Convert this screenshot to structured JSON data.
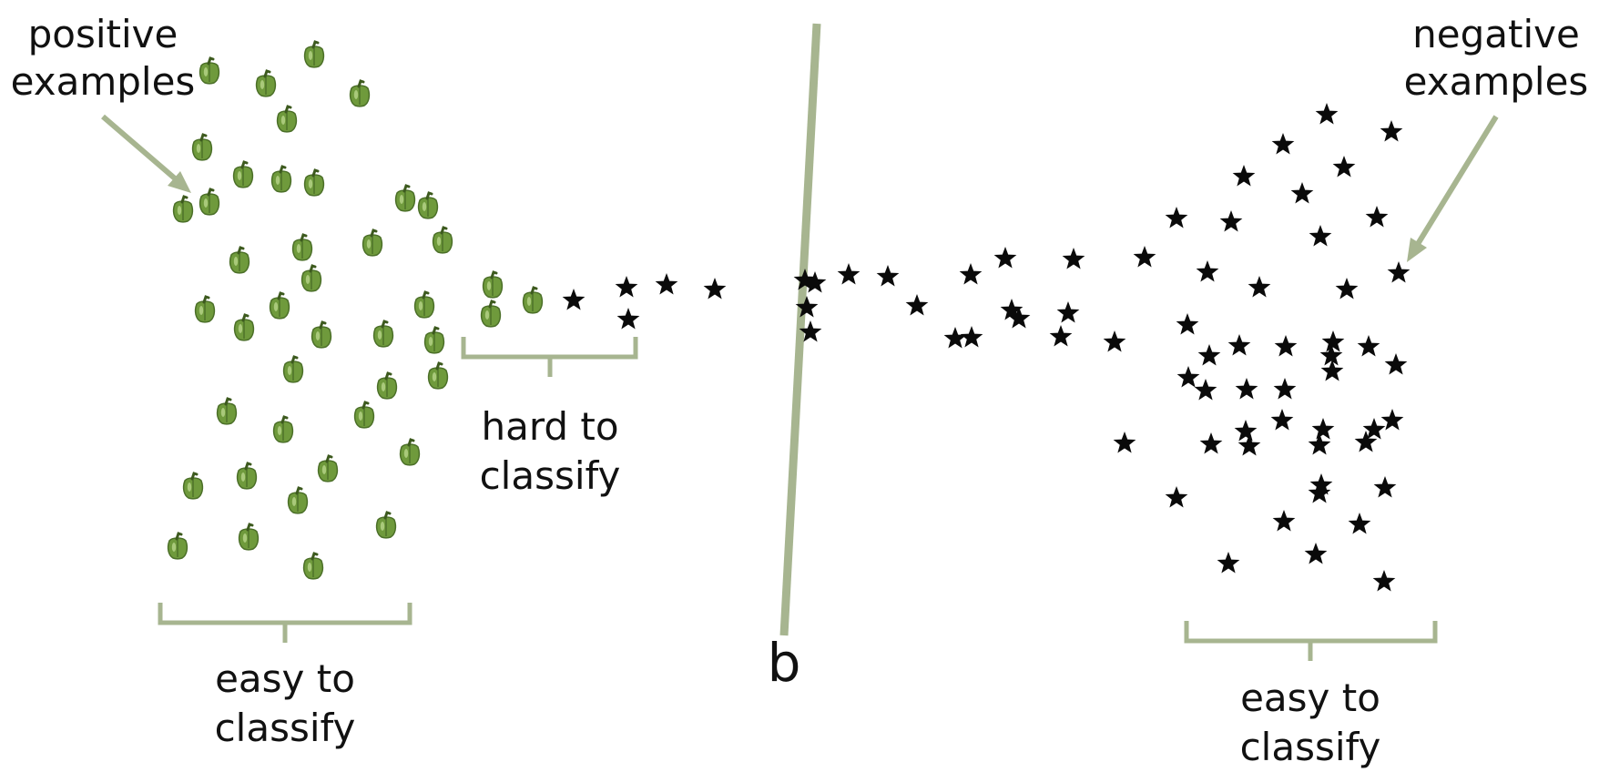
{
  "labels": {
    "positive_line1": "positive",
    "positive_line2": "examples",
    "negative_line1": "negative",
    "negative_line2": "examples",
    "hard_line1": "hard to",
    "hard_line2": "classify",
    "easy_left_line1": "easy to",
    "easy_left_line2": "classify",
    "easy_right_line1": "easy to",
    "easy_right_line2": "classify",
    "boundary": "b"
  },
  "colors": {
    "accent": "#a7b590",
    "text": "#111111",
    "pepper": "#6f9a3c",
    "pepper_dark": "#4b6f28",
    "pepper_stem": "#3d5a1e",
    "star": "#0a0a0a"
  },
  "icons": {
    "positive_marker": "bell-pepper-icon",
    "negative_marker": "star-icon"
  },
  "positive_count": 46,
  "negative_count": 82
}
